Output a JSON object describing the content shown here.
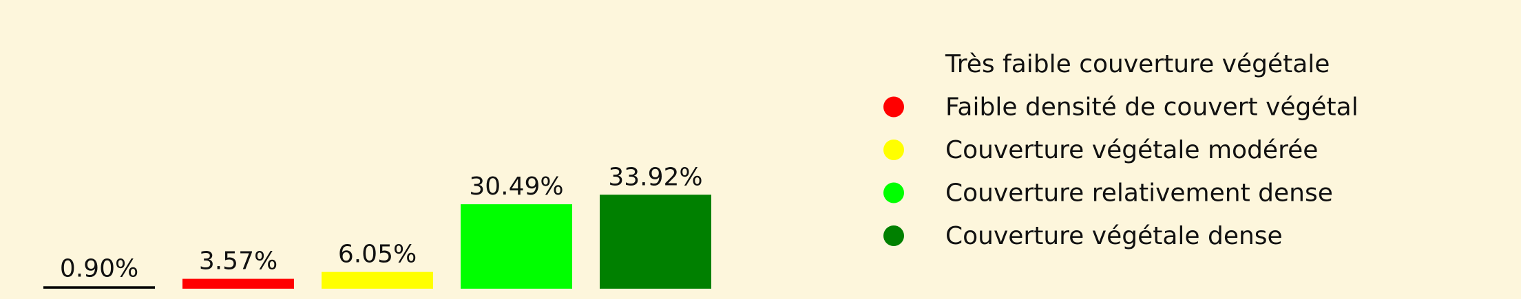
{
  "chart_data": {
    "type": "bar",
    "categories": [
      "Très faible couverture végétale",
      "Faible densité de couvert végétal",
      "Couverture végétale modérée",
      "Couverture relativement dense",
      "Couverture végétale dense"
    ],
    "values": [
      0.9,
      3.57,
      6.05,
      30.49,
      33.92
    ],
    "value_labels": [
      "0.90%",
      "3.57%",
      "6.05%",
      "30.49%",
      "33.92%"
    ],
    "colors": [
      "#000000",
      "#ff0000",
      "#ffff00",
      "#00ff00",
      "#008000"
    ],
    "ylim": [
      0,
      100
    ],
    "grid": false,
    "legend_position": "right"
  }
}
